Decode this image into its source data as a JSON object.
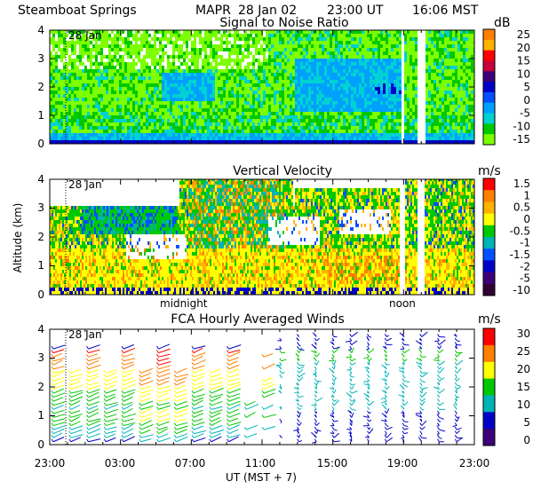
{
  "header": {
    "site": "Steamboat Springs",
    "instrument": "MAPR",
    "date": "28 Jan 02",
    "ut_time": "23:00 UT",
    "local_time": "16:06 MST"
  },
  "chart_data": [
    {
      "type": "heatmap",
      "title": "Signal to Noise Ratio",
      "unit": "dB",
      "date_marker": "28 Jan",
      "ylim": [
        0,
        4
      ],
      "yticks": [
        "0",
        "1",
        "2",
        "3",
        "4"
      ],
      "colorbar_labels": [
        "25",
        "20",
        "15",
        "10",
        "5",
        "0",
        "-5",
        "-10",
        "-15"
      ],
      "colors": [
        "#ff7f00",
        "#ffb300",
        "#ff0000",
        "#c8003c",
        "#3c0078",
        "#0000c8",
        "#0050ff",
        "#00a0ff",
        "#00d2d2",
        "#00c800",
        "#7dff00"
      ]
    },
    {
      "type": "heatmap",
      "title": "Vertical Velocity",
      "unit": "m/s",
      "ylabel": "Altitude (km)",
      "date_marker": "28 Jan",
      "ylim": [
        0,
        4
      ],
      "yticks": [
        "0",
        "1",
        "2",
        "3",
        "4"
      ],
      "colorbar_labels": [
        "1.5",
        "1",
        "0.5",
        "0",
        "-0.5",
        "-1",
        "-1.5",
        "-2",
        "-5",
        "-10"
      ],
      "colors": [
        "#ff0000",
        "#ff7f00",
        "#ffb300",
        "#ffff00",
        "#00c800",
        "#00b4b4",
        "#0050ff",
        "#0000c8",
        "#3c0078",
        "#330033"
      ],
      "annotations": [
        "midnight",
        "noon"
      ]
    },
    {
      "type": "scatter",
      "title": "FCA Hourly Averaged Winds",
      "unit": "m/s",
      "date_marker": "28 Jan",
      "ylim": [
        0,
        4
      ],
      "yticks": [
        "0",
        "1",
        "2",
        "3",
        "4"
      ],
      "colorbar_labels": [
        "30",
        "25",
        "20",
        "15",
        "10",
        "5",
        "0"
      ],
      "colors": [
        "#ff0000",
        "#ff7f00",
        "#ffff00",
        "#00c800",
        "#00b4b4",
        "#0000c8",
        "#3c0078"
      ],
      "x_tick_labels": [
        "23:00",
        "03:00",
        "07:00",
        "11:00",
        "15:00",
        "19:00",
        "23:00"
      ],
      "xlabel": "UT  (MST + 7)"
    }
  ]
}
